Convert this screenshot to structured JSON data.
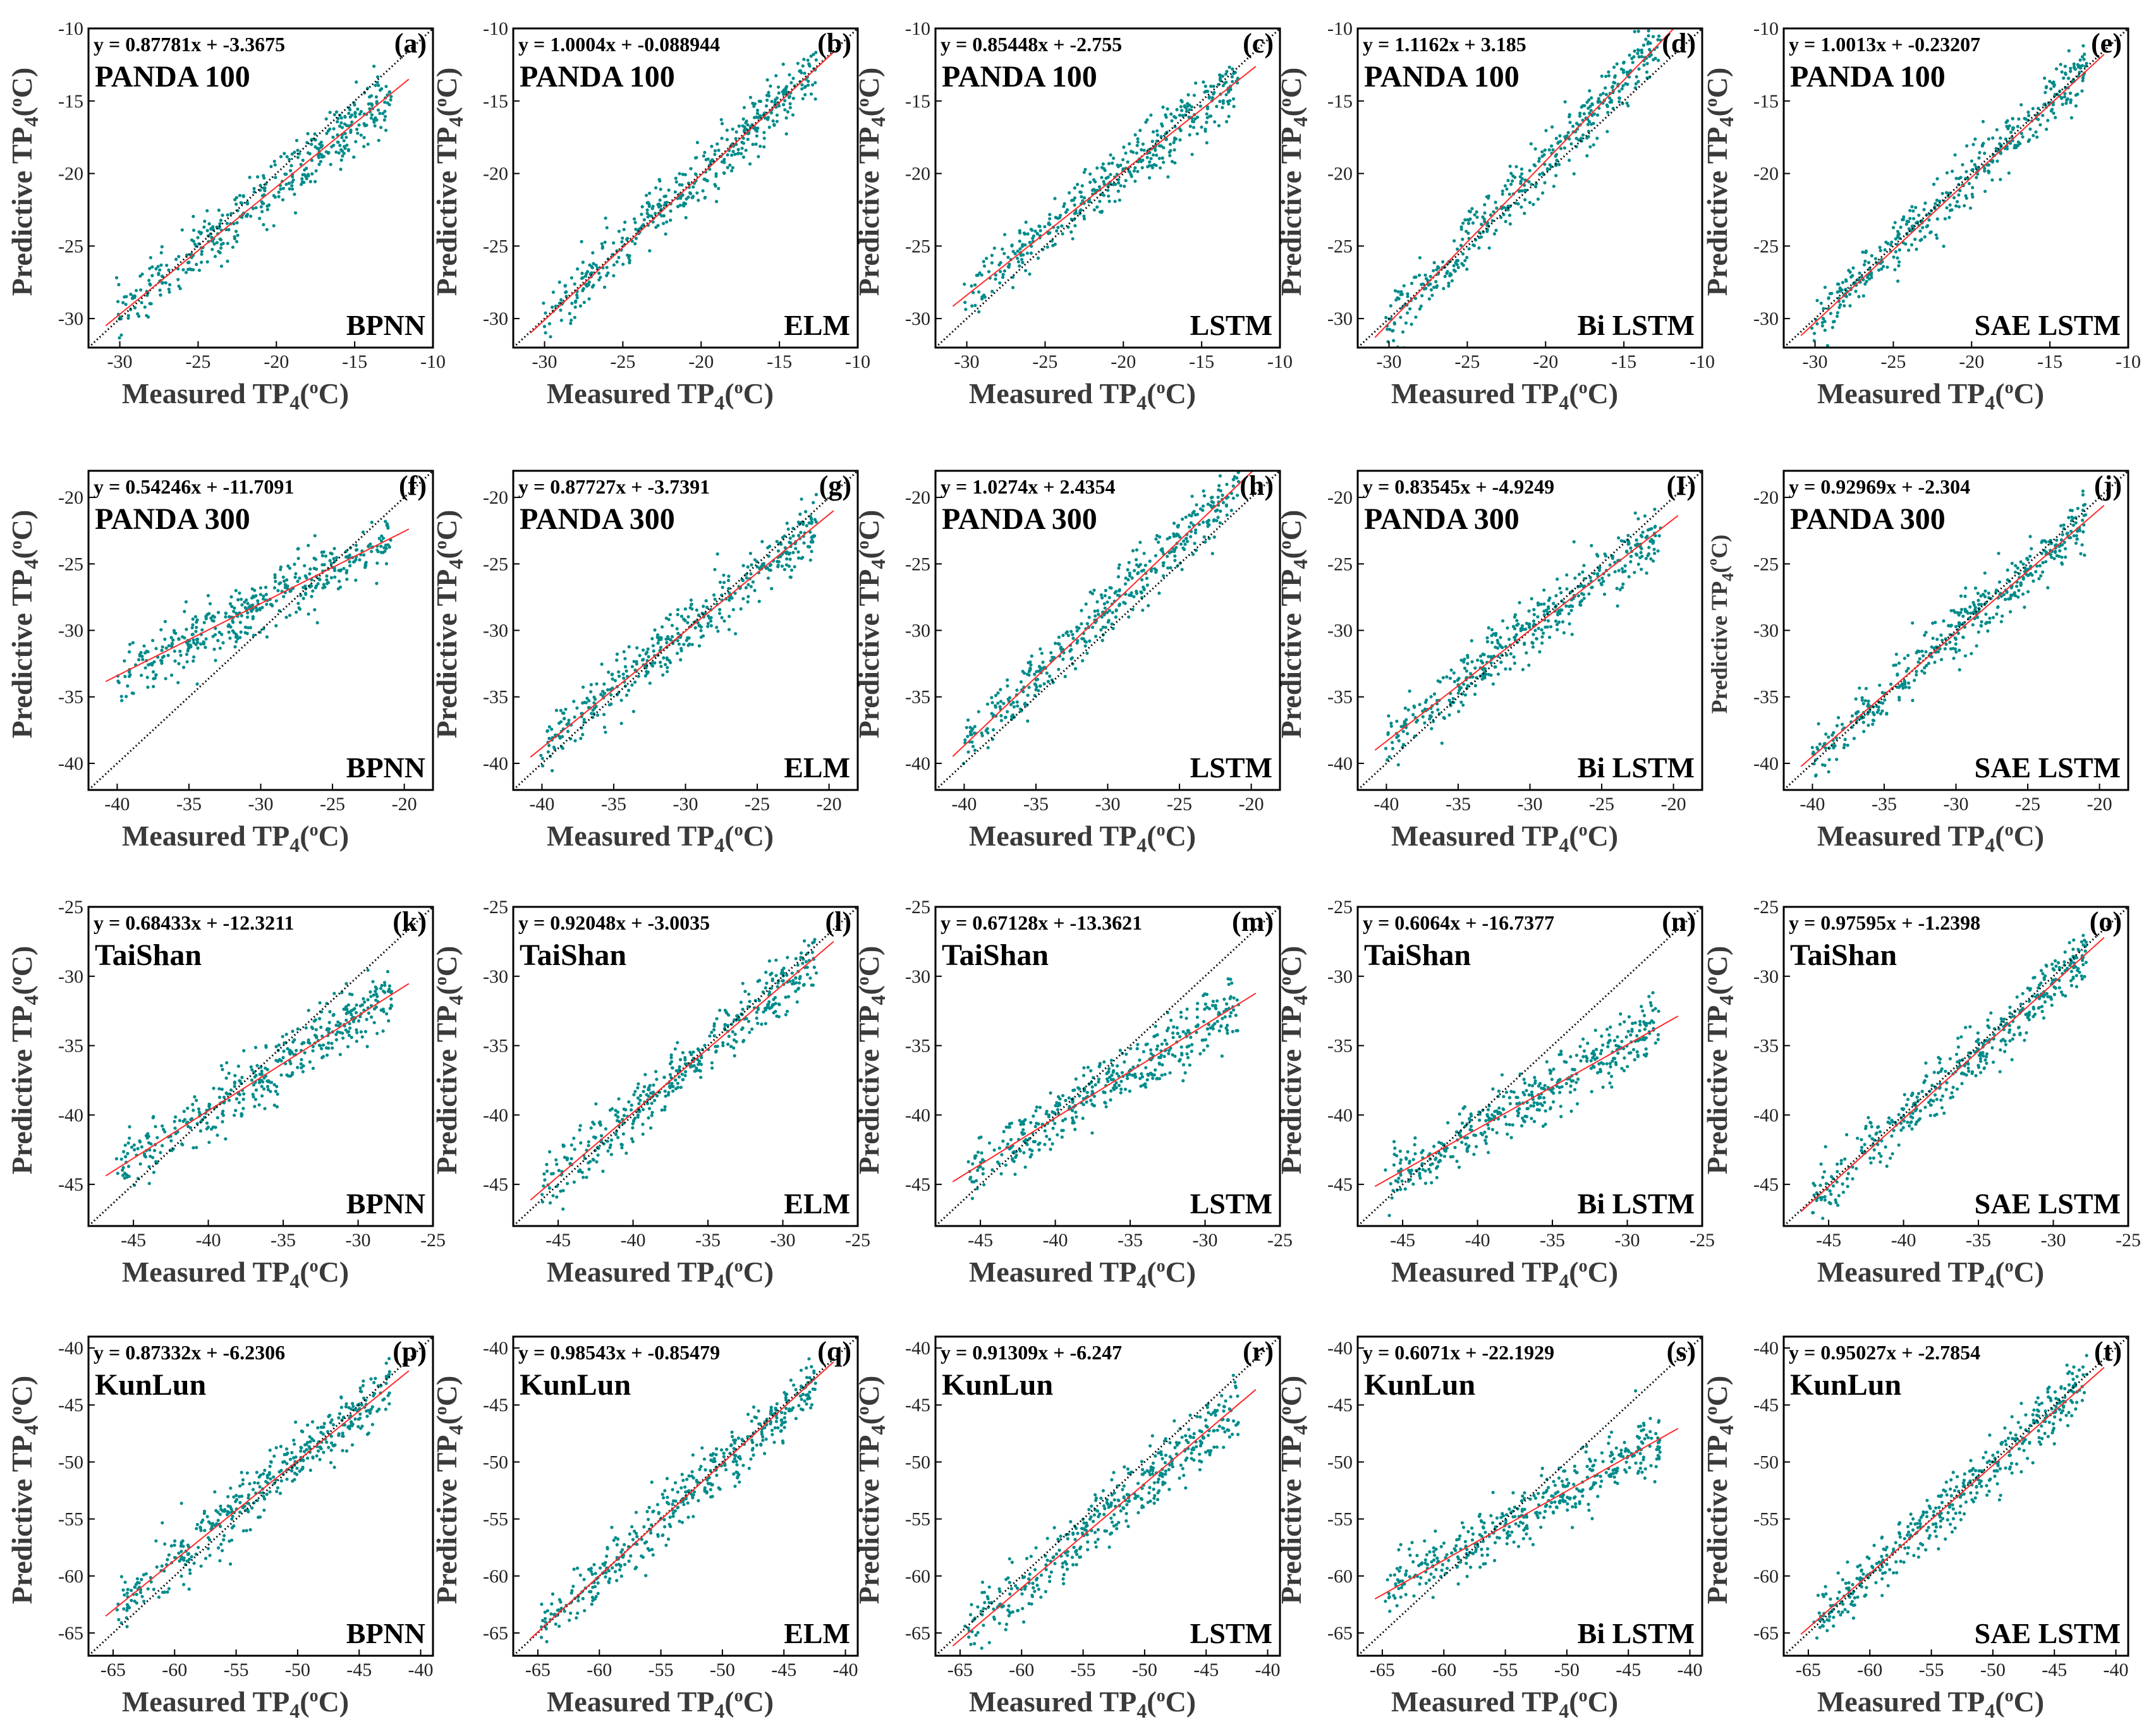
{
  "colors": {
    "points": "#008b8b",
    "fit_line": "#ff2a2a",
    "identity_line": "#000000",
    "frame": "#000000"
  },
  "chart_data": [
    {
      "panel": "(a)",
      "site": "PANDA 100",
      "model": "BPNN",
      "equation": "y = 0.87781x + -3.3675",
      "slope": 0.87781,
      "intercept": -3.3675,
      "xlim": [
        -32,
        -10
      ],
      "ylim": [
        -32,
        -10
      ],
      "xticks": [
        -30,
        -25,
        -20,
        -15,
        -10
      ],
      "yticks": [
        -30,
        -25,
        -20,
        -15,
        -10
      ],
      "xlabel": "Measured  TP",
      "ylabel": "Predictive  TP",
      "type": "scatter"
    },
    {
      "panel": "(b)",
      "site": "PANDA 100",
      "model": "ELM",
      "equation": "y = 1.0004x + -0.088944",
      "slope": 1.0004,
      "intercept": -0.088944,
      "xlim": [
        -32,
        -10
      ],
      "ylim": [
        -32,
        -10
      ],
      "xticks": [
        -30,
        -25,
        -20,
        -15,
        -10
      ],
      "yticks": [
        -30,
        -25,
        -20,
        -15,
        -10
      ],
      "xlabel": "Measured  TP",
      "ylabel": "Predictive  TP",
      "type": "scatter"
    },
    {
      "panel": "(c)",
      "site": "PANDA 100",
      "model": "LSTM",
      "equation": "y = 0.85448x + -2.755",
      "slope": 0.85448,
      "intercept": -2.755,
      "xlim": [
        -32,
        -10
      ],
      "ylim": [
        -32,
        -10
      ],
      "xticks": [
        -30,
        -25,
        -20,
        -15,
        -10
      ],
      "yticks": [
        -30,
        -25,
        -20,
        -15,
        -10
      ],
      "xlabel": "Measured  TP",
      "ylabel": "Predictive  TP",
      "type": "scatter"
    },
    {
      "panel": "(d)",
      "site": "PANDA 100",
      "model": "Bi LSTM",
      "equation": "y = 1.1162x + 3.185",
      "slope": 1.1162,
      "intercept": 3.185,
      "xlim": [
        -32,
        -10
      ],
      "ylim": [
        -32,
        -10
      ],
      "xticks": [
        -30,
        -25,
        -20,
        -15,
        -10
      ],
      "yticks": [
        -30,
        -25,
        -20,
        -15,
        -10
      ],
      "xlabel": "Measured  TP",
      "ylabel": "Predictive  TP",
      "type": "scatter"
    },
    {
      "panel": "(e)",
      "site": "PANDA 100",
      "model": "SAE LSTM",
      "equation": "y = 1.0013x + -0.23207",
      "slope": 1.0013,
      "intercept": -0.23207,
      "xlim": [
        -32,
        -10
      ],
      "ylim": [
        -32,
        -10
      ],
      "xticks": [
        -30,
        -25,
        -20,
        -15,
        -10
      ],
      "yticks": [
        -30,
        -25,
        -20,
        -15,
        -10
      ],
      "xlabel": "Measured  TP",
      "ylabel": "Predictive  TP",
      "type": "scatter"
    },
    {
      "panel": "(f)",
      "site": "PANDA 300",
      "model": "BPNN",
      "equation": "y = 0.54246x + -11.7091",
      "slope": 0.54246,
      "intercept": -11.7091,
      "xlim": [
        -42,
        -18
      ],
      "ylim": [
        -42,
        -18
      ],
      "xticks": [
        -40,
        -35,
        -30,
        -25,
        -20
      ],
      "yticks": [
        -40,
        -35,
        -30,
        -25,
        -20
      ],
      "xlabel": "Measured  TP",
      "ylabel": "Predictive  TP",
      "type": "scatter"
    },
    {
      "panel": "(g)",
      "site": "PANDA 300",
      "model": "ELM",
      "equation": "y = 0.87727x + -3.7391",
      "slope": 0.87727,
      "intercept": -3.7391,
      "xlim": [
        -42,
        -18
      ],
      "ylim": [
        -42,
        -18
      ],
      "xticks": [
        -40,
        -35,
        -30,
        -25,
        -20
      ],
      "yticks": [
        -40,
        -35,
        -30,
        -25,
        -20
      ],
      "xlabel": "Measured  TP",
      "ylabel": "Predictive  TP",
      "type": "scatter"
    },
    {
      "panel": "(h)",
      "site": "PANDA 300",
      "model": "LSTM",
      "equation": "y = 1.0274x + 2.4354",
      "slope": 1.0274,
      "intercept": 2.4354,
      "xlim": [
        -42,
        -18
      ],
      "ylim": [
        -42,
        -18
      ],
      "xticks": [
        -40,
        -35,
        -30,
        -25,
        -20
      ],
      "yticks": [
        -40,
        -35,
        -30,
        -25,
        -20
      ],
      "xlabel": "Measured  TP",
      "ylabel": "Predictive  TP",
      "type": "scatter"
    },
    {
      "panel": "(I)",
      "site": "PANDA 300",
      "model": "Bi LSTM",
      "equation": "y = 0.83545x + -4.9249",
      "slope": 0.83545,
      "intercept": -4.9249,
      "xlim": [
        -42,
        -18
      ],
      "ylim": [
        -42,
        -18
      ],
      "xticks": [
        -40,
        -35,
        -30,
        -25,
        -20
      ],
      "yticks": [
        -40,
        -35,
        -30,
        -25,
        -20
      ],
      "xlabel": "Measured  TP",
      "ylabel": "Predictive  TP",
      "type": "scatter"
    },
    {
      "panel": "(j)",
      "site": "PANDA 300",
      "model": "SAE LSTM",
      "equation": "y = 0.92969x + -2.304",
      "slope": 0.92969,
      "intercept": -2.304,
      "xlim": [
        -42,
        -18
      ],
      "ylim": [
        -42,
        -18
      ],
      "xticks": [
        -40,
        -35,
        -30,
        -25,
        -20
      ],
      "yticks": [
        -40,
        -35,
        -30,
        -25,
        -20
      ],
      "xlabel": "Measured  TP",
      "ylabel": "Predictive  TP",
      "type": "scatter"
    },
    {
      "panel": "(k)",
      "site": "TaiShan",
      "model": "BPNN",
      "equation": "y = 0.68433x + -12.3211",
      "slope": 0.68433,
      "intercept": -12.3211,
      "xlim": [
        -48,
        -25
      ],
      "ylim": [
        -48,
        -25
      ],
      "xticks": [
        -45,
        -40,
        -35,
        -30,
        -25
      ],
      "yticks": [
        -45,
        -40,
        -35,
        -30,
        -25
      ],
      "xlabel": "Measured  TP",
      "ylabel": "Predictive  TP",
      "type": "scatter"
    },
    {
      "panel": "(l)",
      "site": "TaiShan",
      "model": "ELM",
      "equation": "y = 0.92048x + -3.0035",
      "slope": 0.92048,
      "intercept": -3.0035,
      "xlim": [
        -48,
        -25
      ],
      "ylim": [
        -48,
        -25
      ],
      "xticks": [
        -45,
        -40,
        -35,
        -30,
        -25
      ],
      "yticks": [
        -45,
        -40,
        -35,
        -30,
        -25
      ],
      "xlabel": "Measured  TP",
      "ylabel": "Predictive  TP",
      "type": "scatter"
    },
    {
      "panel": "(m)",
      "site": "TaiShan",
      "model": "LSTM",
      "equation": "y = 0.67128x + -13.3621",
      "slope": 0.67128,
      "intercept": -13.3621,
      "xlim": [
        -48,
        -25
      ],
      "ylim": [
        -48,
        -25
      ],
      "xticks": [
        -45,
        -40,
        -35,
        -30,
        -25
      ],
      "yticks": [
        -45,
        -40,
        -35,
        -30,
        -25
      ],
      "xlabel": "Measured  TP",
      "ylabel": "Predictive  TP",
      "type": "scatter"
    },
    {
      "panel": "(n)",
      "site": "TaiShan",
      "model": "Bi LSTM",
      "equation": "y = 0.6064x + -16.7377",
      "slope": 0.6064,
      "intercept": -16.7377,
      "xlim": [
        -48,
        -25
      ],
      "ylim": [
        -48,
        -25
      ],
      "xticks": [
        -45,
        -40,
        -35,
        -30,
        -25
      ],
      "yticks": [
        -45,
        -40,
        -35,
        -30,
        -25
      ],
      "xlabel": "Measured  TP",
      "ylabel": "Predictive  TP",
      "type": "scatter"
    },
    {
      "panel": "(o)",
      "site": "TaiShan",
      "model": "SAE LSTM",
      "equation": "y = 0.97595x + -1.2398",
      "slope": 0.97595,
      "intercept": -1.2398,
      "xlim": [
        -48,
        -25
      ],
      "ylim": [
        -48,
        -25
      ],
      "xticks": [
        -45,
        -40,
        -35,
        -30,
        -25
      ],
      "yticks": [
        -45,
        -40,
        -35,
        -30,
        -25
      ],
      "xlabel": "Measured  TP",
      "ylabel": "Predictive  TP",
      "type": "scatter"
    },
    {
      "panel": "(p)",
      "site": "KunLun",
      "model": "BPNN",
      "equation": "y = 0.87332x + -6.2306",
      "slope": 0.87332,
      "intercept": -6.2306,
      "xlim": [
        -67,
        -39
      ],
      "ylim": [
        -67,
        -39
      ],
      "xticks": [
        -65,
        -60,
        -55,
        -50,
        -45,
        -40
      ],
      "yticks": [
        -65,
        -60,
        -55,
        -50,
        -45,
        -40
      ],
      "xlabel": "Measured  TP",
      "ylabel": "Predictive  TP",
      "type": "scatter"
    },
    {
      "panel": "(q)",
      "site": "KunLun",
      "model": "ELM",
      "equation": "y = 0.98543x + -0.85479",
      "slope": 0.98543,
      "intercept": -0.85479,
      "xlim": [
        -67,
        -39
      ],
      "ylim": [
        -67,
        -39
      ],
      "xticks": [
        -65,
        -60,
        -55,
        -50,
        -45,
        -40
      ],
      "yticks": [
        -65,
        -60,
        -55,
        -50,
        -45,
        -40
      ],
      "xlabel": "Measured  TP",
      "ylabel": "Predictive  TP",
      "type": "scatter"
    },
    {
      "panel": "(r)",
      "site": "KunLun",
      "model": "LSTM",
      "equation": "y = 0.91309x + -6.247",
      "slope": 0.91309,
      "intercept": -6.247,
      "xlim": [
        -67,
        -39
      ],
      "ylim": [
        -67,
        -39
      ],
      "xticks": [
        -65,
        -60,
        -55,
        -50,
        -45,
        -40
      ],
      "yticks": [
        -65,
        -60,
        -55,
        -50,
        -45,
        -40
      ],
      "xlabel": "Measured  TP",
      "ylabel": "Predictive  TP",
      "type": "scatter"
    },
    {
      "panel": "(s)",
      "site": "KunLun",
      "model": "Bi LSTM",
      "equation": "y = 0.6071x + -22.1929",
      "slope": 0.6071,
      "intercept": -22.1929,
      "xlim": [
        -67,
        -39
      ],
      "ylim": [
        -67,
        -39
      ],
      "xticks": [
        -65,
        -60,
        -55,
        -50,
        -45,
        -40
      ],
      "yticks": [
        -65,
        -60,
        -55,
        -50,
        -45,
        -40
      ],
      "xlabel": "Measured  TP",
      "ylabel": "Predictive  TP",
      "type": "scatter"
    },
    {
      "panel": "(t)",
      "site": "KunLun",
      "model": "SAE LSTM",
      "equation": "y = 0.95027x + -2.7854",
      "slope": 0.95027,
      "intercept": -2.7854,
      "xlim": [
        -67,
        -39
      ],
      "ylim": [
        -67,
        -39
      ],
      "xticks": [
        -65,
        -60,
        -55,
        -50,
        -45,
        -40
      ],
      "yticks": [
        -65,
        -60,
        -55,
        -50,
        -45,
        -40
      ],
      "xlabel": "Measured  TP",
      "ylabel": "Predictive  TP",
      "type": "scatter"
    }
  ]
}
